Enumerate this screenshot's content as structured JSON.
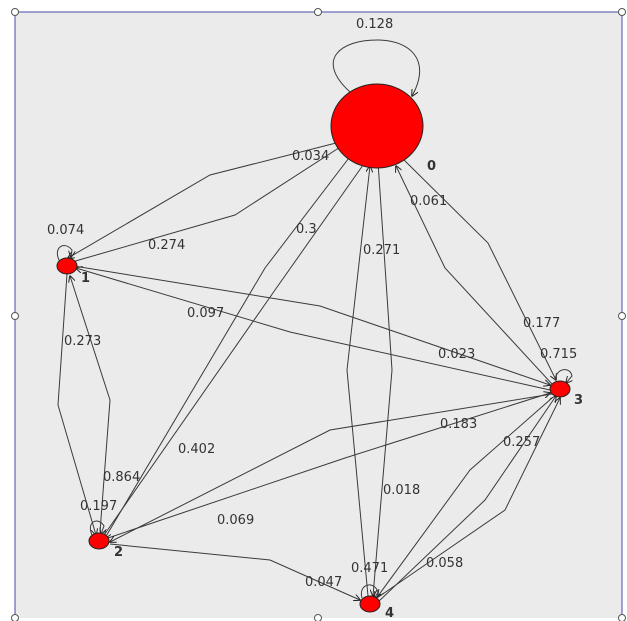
{
  "graph": {
    "colors": {
      "node": "#ff0000",
      "panel": "#ebebeb",
      "frame": "#4a4aa8",
      "edge": "#3a3a3a"
    },
    "nodes": [
      {
        "id": "n0",
        "label": "0"
      },
      {
        "id": "n1",
        "label": "1"
      },
      {
        "id": "n2",
        "label": "2"
      },
      {
        "id": "n3",
        "label": "3"
      },
      {
        "id": "n4",
        "label": "4"
      }
    ],
    "edge_labels": [
      "0.128",
      "0.034",
      "0.274",
      "0.3",
      "0.271",
      "0.061",
      "0.177",
      "0.074",
      "0.097",
      "0.023",
      "0.715",
      "0.273",
      "0.864",
      "0.402",
      "0.183",
      "0.257",
      "0.197",
      "0.069",
      "0.018",
      "0.058",
      "0.471",
      "0.047"
    ]
  }
}
